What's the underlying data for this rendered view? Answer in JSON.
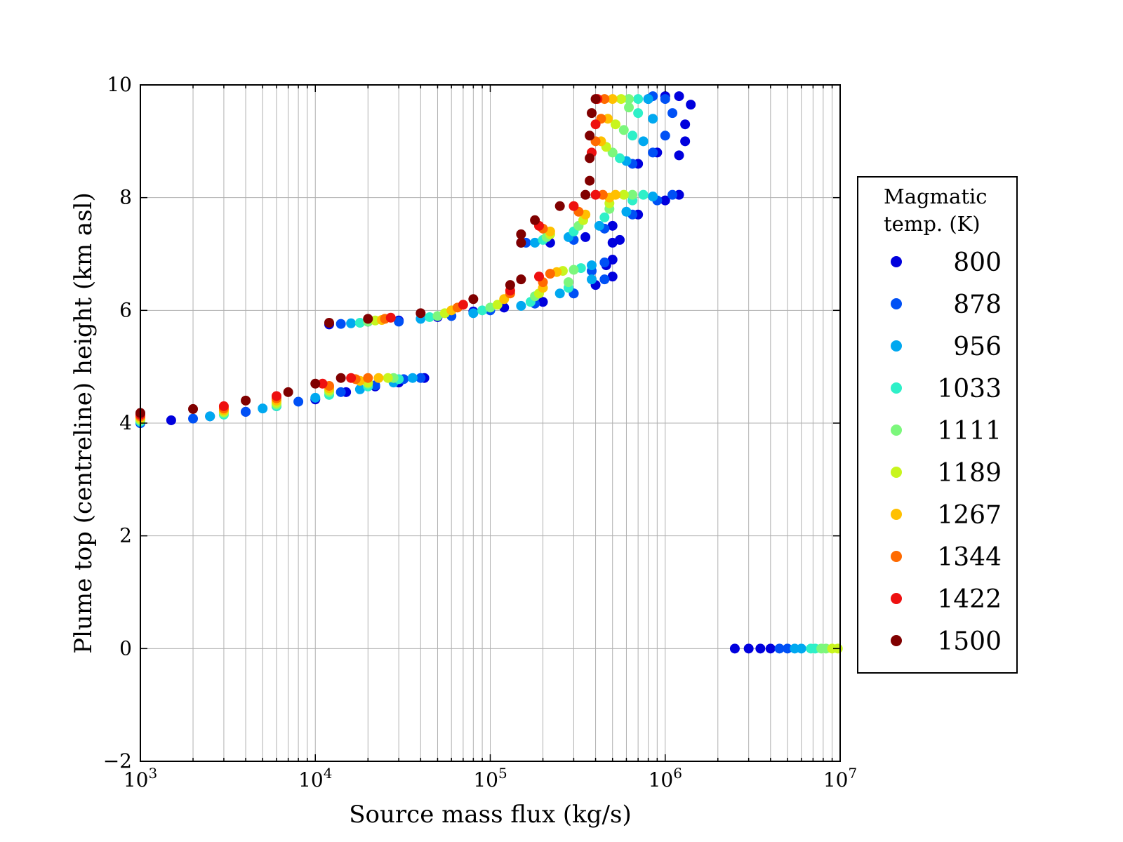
{
  "chart_data": {
    "type": "scatter",
    "xlabel": "Source mass flux (kg/s)",
    "ylabel": "Plume top (centreline) height (km asl)",
    "xscale": "log",
    "xlim": [
      1000,
      10000000
    ],
    "ylim": [
      -2,
      10
    ],
    "grid": true,
    "x_ticks": [
      {
        "value": 1000,
        "base": "10",
        "exp": "3"
      },
      {
        "value": 10000,
        "base": "10",
        "exp": "4"
      },
      {
        "value": 100000,
        "base": "10",
        "exp": "5"
      },
      {
        "value": 1000000,
        "base": "10",
        "exp": "6"
      },
      {
        "value": 10000000,
        "base": "10",
        "exp": "7"
      }
    ],
    "y_ticks": [
      {
        "value": -2,
        "label": "−2"
      },
      {
        "value": 0,
        "label": "0"
      },
      {
        "value": 2,
        "label": "2"
      },
      {
        "value": 4,
        "label": "4"
      },
      {
        "value": 6,
        "label": "6"
      },
      {
        "value": 8,
        "label": "8"
      },
      {
        "value": 10,
        "label": "10"
      }
    ],
    "legend": {
      "title_lines": [
        "Magmatic",
        "temp. (K)"
      ],
      "placement": "outside-right",
      "entries": [
        {
          "label": "800",
          "color": "#0000dd"
        },
        {
          "label": "878",
          "color": "#0050f5"
        },
        {
          "label": "956",
          "color": "#00a8f0"
        },
        {
          "label": "1033",
          "color": "#2ef0c8"
        },
        {
          "label": "1111",
          "color": "#7cf77c"
        },
        {
          "label": "1189",
          "color": "#c8f51e"
        },
        {
          "label": "1267",
          "color": "#ffc000"
        },
        {
          "label": "1344",
          "color": "#ff6a00"
        },
        {
          "label": "1422",
          "color": "#ee1010"
        },
        {
          "label": "1500",
          "color": "#800000"
        }
      ]
    },
    "series": [
      {
        "temp_index": 0,
        "points": [
          [
            1000,
            4.0
          ],
          [
            1500,
            4.05
          ],
          [
            2500,
            4.12
          ],
          [
            4000,
            4.2
          ],
          [
            6000,
            4.3
          ],
          [
            10000,
            4.42
          ],
          [
            15000,
            4.55
          ],
          [
            22000,
            4.65
          ],
          [
            30000,
            4.72
          ],
          [
            42000,
            4.8
          ],
          [
            12000,
            5.75
          ],
          [
            20000,
            5.8
          ],
          [
            30000,
            5.82
          ],
          [
            50000,
            5.88
          ],
          [
            80000,
            5.98
          ],
          [
            120000,
            6.05
          ],
          [
            200000,
            6.15
          ],
          [
            300000,
            6.3
          ],
          [
            400000,
            6.45
          ],
          [
            500000,
            6.6
          ],
          [
            500000,
            6.9
          ],
          [
            460000,
            6.8
          ],
          [
            150000,
            7.2
          ],
          [
            220000,
            7.2
          ],
          [
            350000,
            7.3
          ],
          [
            500000,
            7.5
          ],
          [
            700000,
            7.7
          ],
          [
            1000000,
            7.95
          ],
          [
            1200000,
            8.05
          ],
          [
            500000,
            7.2
          ],
          [
            550000,
            7.25
          ],
          [
            700000,
            8.6
          ],
          [
            900000,
            8.8
          ],
          [
            1200000,
            8.75
          ],
          [
            1300000,
            9.0
          ],
          [
            1300000,
            9.3
          ],
          [
            1400000,
            9.65
          ],
          [
            1200000,
            9.8
          ],
          [
            1000000,
            9.8
          ],
          [
            800000,
            9.75
          ],
          [
            2500000,
            0
          ],
          [
            3000000,
            0
          ],
          [
            3500000,
            0
          ],
          [
            4000000,
            0
          ]
        ]
      },
      {
        "temp_index": 1,
        "points": [
          [
            1000,
            4.0
          ],
          [
            2000,
            4.08
          ],
          [
            4000,
            4.2
          ],
          [
            8000,
            4.38
          ],
          [
            14000,
            4.55
          ],
          [
            22000,
            4.67
          ],
          [
            32000,
            4.78
          ],
          [
            40000,
            4.8
          ],
          [
            14000,
            5.76
          ],
          [
            30000,
            5.8
          ],
          [
            60000,
            5.9
          ],
          [
            100000,
            6.0
          ],
          [
            180000,
            6.12
          ],
          [
            300000,
            6.3
          ],
          [
            450000,
            6.55
          ],
          [
            450000,
            6.85
          ],
          [
            380000,
            6.7
          ],
          [
            160000,
            7.2
          ],
          [
            300000,
            7.25
          ],
          [
            450000,
            7.45
          ],
          [
            650000,
            7.7
          ],
          [
            900000,
            7.95
          ],
          [
            1100000,
            8.05
          ],
          [
            650000,
            8.6
          ],
          [
            850000,
            8.8
          ],
          [
            1000000,
            9.1
          ],
          [
            1100000,
            9.5
          ],
          [
            1000000,
            9.75
          ],
          [
            850000,
            9.8
          ],
          [
            4500000,
            0
          ],
          [
            5000000,
            0
          ]
        ]
      },
      {
        "temp_index": 2,
        "points": [
          [
            1000,
            4.02
          ],
          [
            2500,
            4.12
          ],
          [
            5000,
            4.26
          ],
          [
            10000,
            4.45
          ],
          [
            18000,
            4.6
          ],
          [
            28000,
            4.72
          ],
          [
            36000,
            4.8
          ],
          [
            16000,
            5.77
          ],
          [
            40000,
            5.85
          ],
          [
            80000,
            5.95
          ],
          [
            150000,
            6.08
          ],
          [
            250000,
            6.3
          ],
          [
            380000,
            6.55
          ],
          [
            380000,
            6.8
          ],
          [
            180000,
            7.2
          ],
          [
            280000,
            7.3
          ],
          [
            420000,
            7.5
          ],
          [
            600000,
            7.75
          ],
          [
            850000,
            8.02
          ],
          [
            600000,
            8.65
          ],
          [
            750000,
            9.0
          ],
          [
            850000,
            9.4
          ],
          [
            800000,
            9.75
          ],
          [
            5500000,
            0
          ],
          [
            6000000,
            0
          ]
        ]
      },
      {
        "temp_index": 3,
        "points": [
          [
            1000,
            4.03
          ],
          [
            3000,
            4.15
          ],
          [
            6000,
            4.3
          ],
          [
            12000,
            4.5
          ],
          [
            20000,
            4.65
          ],
          [
            30000,
            4.78
          ],
          [
            18000,
            5.78
          ],
          [
            45000,
            5.88
          ],
          [
            90000,
            6.0
          ],
          [
            170000,
            6.15
          ],
          [
            280000,
            6.4
          ],
          [
            330000,
            6.75
          ],
          [
            200000,
            7.25
          ],
          [
            300000,
            7.4
          ],
          [
            450000,
            7.65
          ],
          [
            650000,
            7.95
          ],
          [
            750000,
            8.05
          ],
          [
            550000,
            8.7
          ],
          [
            650000,
            9.1
          ],
          [
            700000,
            9.5
          ],
          [
            700000,
            9.75
          ],
          [
            6800000,
            0
          ],
          [
            7200000,
            0
          ]
        ]
      },
      {
        "temp_index": 4,
        "points": [
          [
            1000,
            4.05
          ],
          [
            3000,
            4.18
          ],
          [
            6000,
            4.33
          ],
          [
            12000,
            4.55
          ],
          [
            20000,
            4.7
          ],
          [
            28000,
            4.8
          ],
          [
            20000,
            5.8
          ],
          [
            50000,
            5.9
          ],
          [
            100000,
            6.05
          ],
          [
            180000,
            6.25
          ],
          [
            280000,
            6.5
          ],
          [
            300000,
            6.72
          ],
          [
            210000,
            7.3
          ],
          [
            320000,
            7.5
          ],
          [
            480000,
            7.8
          ],
          [
            650000,
            8.05
          ],
          [
            500000,
            8.8
          ],
          [
            580000,
            9.2
          ],
          [
            620000,
            9.6
          ],
          [
            620000,
            9.75
          ],
          [
            7800000,
            0
          ],
          [
            8300000,
            0
          ]
        ]
      },
      {
        "temp_index": 5,
        "points": [
          [
            1000,
            4.07
          ],
          [
            3000,
            4.2
          ],
          [
            6000,
            4.36
          ],
          [
            12000,
            4.58
          ],
          [
            20000,
            4.72
          ],
          [
            26000,
            4.8
          ],
          [
            22000,
            5.82
          ],
          [
            55000,
            5.95
          ],
          [
            110000,
            6.1
          ],
          [
            190000,
            6.3
          ],
          [
            260000,
            6.7
          ],
          [
            220000,
            7.35
          ],
          [
            340000,
            7.6
          ],
          [
            480000,
            7.9
          ],
          [
            580000,
            8.05
          ],
          [
            460000,
            8.9
          ],
          [
            520000,
            9.3
          ],
          [
            560000,
            9.75
          ],
          [
            9000000,
            0
          ],
          [
            9700000,
            0
          ]
        ]
      },
      {
        "temp_index": 6,
        "points": [
          [
            1000,
            4.1
          ],
          [
            3000,
            4.23
          ],
          [
            6000,
            4.4
          ],
          [
            12000,
            4.62
          ],
          [
            18000,
            4.75
          ],
          [
            23000,
            4.8
          ],
          [
            24000,
            5.83
          ],
          [
            60000,
            6.0
          ],
          [
            120000,
            6.2
          ],
          [
            200000,
            6.4
          ],
          [
            240000,
            6.68
          ],
          [
            220000,
            7.4
          ],
          [
            350000,
            7.7
          ],
          [
            480000,
            8.0
          ],
          [
            520000,
            8.05
          ],
          [
            430000,
            9.0
          ],
          [
            470000,
            9.4
          ],
          [
            500000,
            9.75
          ]
        ]
      },
      {
        "temp_index": 7,
        "points": [
          [
            1000,
            4.12
          ],
          [
            3000,
            4.26
          ],
          [
            6000,
            4.44
          ],
          [
            12000,
            4.66
          ],
          [
            17000,
            4.78
          ],
          [
            20000,
            4.8
          ],
          [
            25000,
            5.85
          ],
          [
            65000,
            6.05
          ],
          [
            130000,
            6.3
          ],
          [
            200000,
            6.5
          ],
          [
            220000,
            6.65
          ],
          [
            200000,
            7.45
          ],
          [
            320000,
            7.75
          ],
          [
            440000,
            8.05
          ],
          [
            400000,
            9.0
          ],
          [
            430000,
            9.4
          ],
          [
            450000,
            9.75
          ]
        ]
      },
      {
        "temp_index": 8,
        "points": [
          [
            1000,
            4.15
          ],
          [
            3000,
            4.3
          ],
          [
            6000,
            4.48
          ],
          [
            11000,
            4.7
          ],
          [
            16000,
            4.8
          ],
          [
            27000,
            5.87
          ],
          [
            70000,
            6.1
          ],
          [
            130000,
            6.35
          ],
          [
            190000,
            6.6
          ],
          [
            190000,
            7.5
          ],
          [
            300000,
            7.85
          ],
          [
            400000,
            8.05
          ],
          [
            380000,
            8.8
          ],
          [
            400000,
            9.3
          ],
          [
            410000,
            9.75
          ]
        ]
      },
      {
        "temp_index": 9,
        "points": [
          [
            1000,
            4.18
          ],
          [
            2000,
            4.25
          ],
          [
            4000,
            4.4
          ],
          [
            7000,
            4.55
          ],
          [
            10000,
            4.7
          ],
          [
            14000,
            4.8
          ],
          [
            12000,
            5.78
          ],
          [
            20000,
            5.85
          ],
          [
            40000,
            5.95
          ],
          [
            80000,
            6.2
          ],
          [
            130000,
            6.45
          ],
          [
            150000,
            6.55
          ],
          [
            150000,
            7.2
          ],
          [
            150000,
            7.35
          ],
          [
            180000,
            7.6
          ],
          [
            250000,
            7.85
          ],
          [
            350000,
            8.05
          ],
          [
            370000,
            8.3
          ],
          [
            370000,
            8.7
          ],
          [
            370000,
            9.1
          ],
          [
            380000,
            9.5
          ],
          [
            400000,
            9.75
          ]
        ]
      }
    ]
  }
}
